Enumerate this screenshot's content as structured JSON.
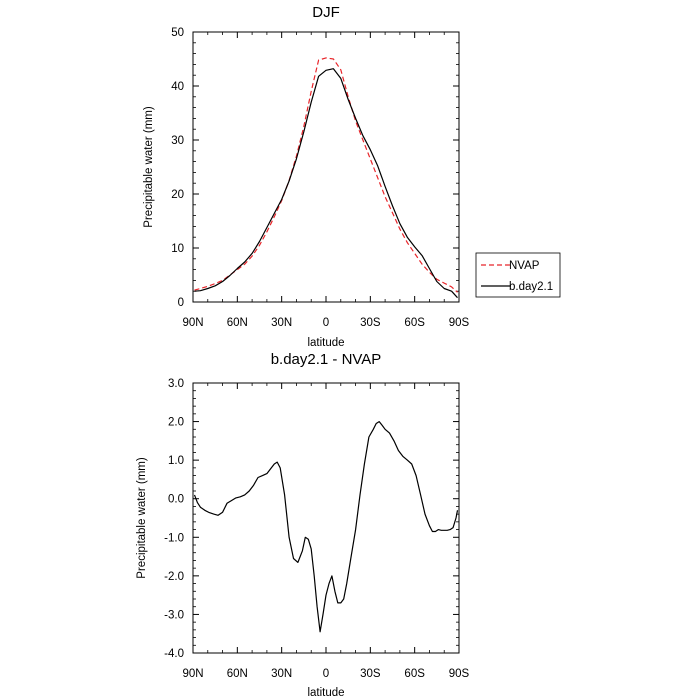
{
  "chart_data": [
    {
      "type": "line",
      "title": "DJF",
      "xlabel": "latitude",
      "ylabel": "Precipitable water (mm)",
      "xlim": [
        90,
        -90
      ],
      "ylim": [
        0,
        50
      ],
      "yticks": [
        0,
        10,
        20,
        30,
        40,
        50
      ],
      "ytick_labels": [
        "0",
        "10",
        "20",
        "30",
        "40",
        "50"
      ],
      "xticks": [
        90,
        60,
        30,
        0,
        -30,
        -60,
        -90
      ],
      "xtick_labels": [
        "90N",
        "60N",
        "30N",
        "0",
        "30S",
        "60S",
        "90S"
      ],
      "legend": {
        "placement": "right-outside",
        "entries": [
          "NVAP",
          "b.day2.1"
        ]
      },
      "series": [
        {
          "name": "NVAP",
          "color": "#e8252a",
          "style": "dashed",
          "x": [
            89,
            85,
            80,
            75,
            70,
            65,
            60,
            55,
            50,
            45,
            40,
            35,
            30,
            25,
            20,
            15,
            10,
            5,
            0,
            -5,
            -10,
            -15,
            -20,
            -25,
            -30,
            -35,
            -40,
            -45,
            -50,
            -55,
            -60,
            -65,
            -70,
            -75,
            -80,
            -85,
            -89
          ],
          "y": [
            2.2,
            2.5,
            2.9,
            3.4,
            4.0,
            5.0,
            6.0,
            7.0,
            8.5,
            10.5,
            13.0,
            15.8,
            18.8,
            22.5,
            27.0,
            32.5,
            39.0,
            44.8,
            45.2,
            45.0,
            43.0,
            38.0,
            33.5,
            30.0,
            26.5,
            23.0,
            19.5,
            16.5,
            13.5,
            11.0,
            9.0,
            7.0,
            5.5,
            4.2,
            3.5,
            2.8,
            1.8
          ]
        },
        {
          "name": "b.day2.1",
          "color": "#000000",
          "style": "solid",
          "x": [
            89,
            85,
            80,
            75,
            70,
            65,
            60,
            55,
            50,
            45,
            40,
            35,
            30,
            25,
            20,
            15,
            10,
            5,
            0,
            -5,
            -10,
            -15,
            -20,
            -25,
            -30,
            -35,
            -40,
            -45,
            -50,
            -55,
            -60,
            -65,
            -70,
            -75,
            -80,
            -85,
            -89
          ],
          "y": [
            2.0,
            2.1,
            2.5,
            3.0,
            3.8,
            4.9,
            6.2,
            7.4,
            9.0,
            11.2,
            13.8,
            16.4,
            19.0,
            22.4,
            26.5,
            31.5,
            37.0,
            41.8,
            42.9,
            43.2,
            41.4,
            37.5,
            34.0,
            30.8,
            28.2,
            25.2,
            21.4,
            17.8,
            14.5,
            12.0,
            10.2,
            8.6,
            6.2,
            3.8,
            2.5,
            2.0,
            0.8
          ]
        }
      ]
    },
    {
      "type": "line",
      "title": "b.day2.1 - NVAP",
      "xlabel": "latitude",
      "ylabel": "Precipitable water (mm)",
      "xlim": [
        90,
        -90
      ],
      "ylim": [
        -4.0,
        3.0
      ],
      "yticks": [
        -4,
        -3,
        -2,
        -1,
        0,
        1,
        2,
        3
      ],
      "ytick_labels": [
        "-4.0",
        "-3.0",
        "-2.0",
        "-1.0",
        "0.0",
        "1.0",
        "2.0",
        "3.0"
      ],
      "xticks": [
        90,
        60,
        30,
        0,
        -30,
        -60,
        -90
      ],
      "xtick_labels": [
        "90N",
        "60N",
        "30N",
        "0",
        "30S",
        "60S",
        "90S"
      ],
      "series": [
        {
          "color": "#000000",
          "style": "solid",
          "x": [
            89,
            87,
            85,
            82,
            79,
            76,
            73,
            70,
            67,
            64,
            61,
            58,
            55,
            52,
            49,
            46,
            43,
            40,
            37,
            35,
            33,
            31,
            28,
            25,
            22,
            19,
            16,
            14,
            12,
            10,
            8,
            6,
            4,
            2,
            0,
            -2,
            -4,
            -6,
            -8,
            -10,
            -12,
            -14,
            -17,
            -20,
            -23,
            -26,
            -29,
            -32,
            -34,
            -36,
            -38,
            -40,
            -43,
            -46,
            -49,
            -52,
            -55,
            -58,
            -61,
            -64,
            -67,
            -70,
            -72,
            -74,
            -76,
            -78,
            -80,
            -82,
            -84,
            -86,
            -88,
            -89
          ],
          "y": [
            0.1,
            -0.1,
            -0.22,
            -0.3,
            -0.36,
            -0.4,
            -0.43,
            -0.35,
            -0.12,
            -0.05,
            0.02,
            0.05,
            0.1,
            0.2,
            0.35,
            0.55,
            0.6,
            0.65,
            0.8,
            0.9,
            0.95,
            0.8,
            0.1,
            -1.0,
            -1.55,
            -1.65,
            -1.35,
            -1.0,
            -1.05,
            -1.3,
            -2.0,
            -2.8,
            -3.45,
            -3.0,
            -2.5,
            -2.2,
            -2.0,
            -2.4,
            -2.7,
            -2.7,
            -2.6,
            -2.2,
            -1.5,
            -0.8,
            0.1,
            0.9,
            1.6,
            1.8,
            1.95,
            2.0,
            1.9,
            1.8,
            1.7,
            1.5,
            1.25,
            1.1,
            1.0,
            0.9,
            0.6,
            0.1,
            -0.4,
            -0.7,
            -0.85,
            -0.85,
            -0.8,
            -0.82,
            -0.82,
            -0.82,
            -0.8,
            -0.75,
            -0.5,
            -0.3
          ]
        }
      ]
    }
  ]
}
